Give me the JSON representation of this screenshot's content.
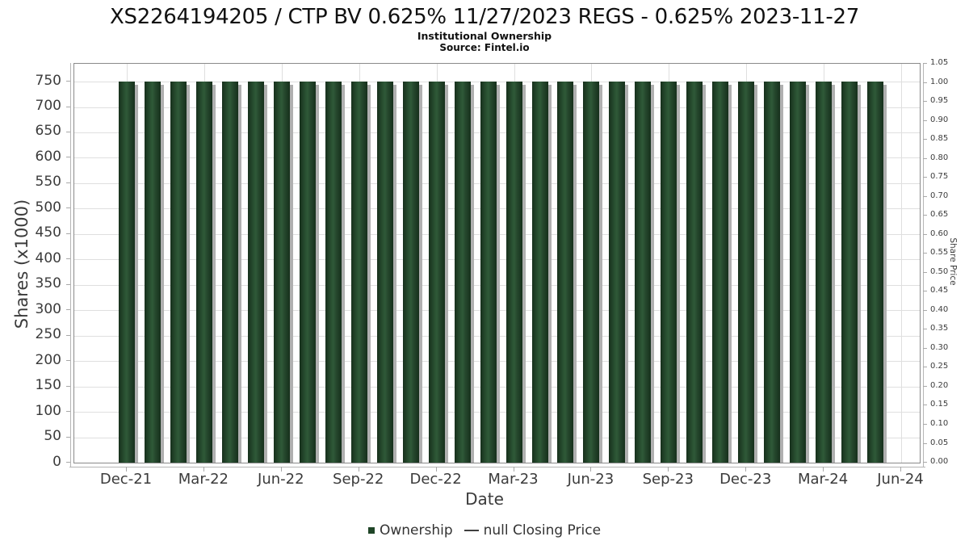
{
  "page": {
    "title": "XS2264194205 / CTP BV 0.625% 11/27/2023 REGS - 0.625% 2023-11-27",
    "subtitle": "Institutional Ownership",
    "source": "Source: Fintel.io"
  },
  "chart_data": {
    "type": "bar",
    "title": "XS2264194205 / CTP BV 0.625% 11/27/2023 REGS - 0.625% 2023-11-27",
    "subtitle": "Institutional Ownership",
    "source": "Source: Fintel.io",
    "xlabel": "Date",
    "ylabel_left": "Shares (x1000)",
    "ylabel_right": "Share Price",
    "grid": true,
    "legend_position": "bottom",
    "categories": [
      "Dec-21",
      "Jan-22",
      "Feb-22",
      "Mar-22",
      "Apr-22",
      "May-22",
      "Jun-22",
      "Jul-22",
      "Aug-22",
      "Sep-22",
      "Oct-22",
      "Nov-22",
      "Dec-22",
      "Jan-23",
      "Feb-23",
      "Mar-23",
      "Apr-23",
      "May-23",
      "Jun-23",
      "Jul-23",
      "Aug-23",
      "Sep-23",
      "Oct-23",
      "Nov-23",
      "Dec-23",
      "Jan-24",
      "Feb-24",
      "Mar-24",
      "Apr-24",
      "May-24"
    ],
    "series": [
      {
        "name": "Ownership",
        "type": "bar",
        "axis": "left",
        "color": "#1f4527",
        "values": [
          750,
          750,
          750,
          750,
          750,
          750,
          750,
          750,
          750,
          750,
          750,
          750,
          750,
          750,
          750,
          750,
          750,
          750,
          750,
          750,
          750,
          750,
          750,
          750,
          750,
          750,
          750,
          750,
          750,
          750
        ]
      },
      {
        "name": "null Closing Price",
        "type": "line",
        "axis": "right",
        "color": "#3f3f3f",
        "values": []
      }
    ],
    "x_ticks": [
      "Dec-21",
      "Mar-22",
      "Jun-22",
      "Sep-22",
      "Dec-22",
      "Mar-23",
      "Jun-23",
      "Sep-23",
      "Dec-23",
      "Mar-24",
      "Jun-24"
    ],
    "months_per_x_tick": 3,
    "y_left": {
      "tick_min": 0,
      "tick_max": 750,
      "tick_step": 50,
      "axis_max": 785
    },
    "y_right": {
      "tick_min": 0.0,
      "tick_max": 1.05,
      "tick_step": 0.05
    }
  },
  "legend": {
    "items": [
      {
        "label": "Ownership",
        "marker": "square",
        "color": "#1f4527"
      },
      {
        "label": "null Closing Price",
        "marker": "line",
        "color": "#3f3f3f"
      }
    ]
  }
}
